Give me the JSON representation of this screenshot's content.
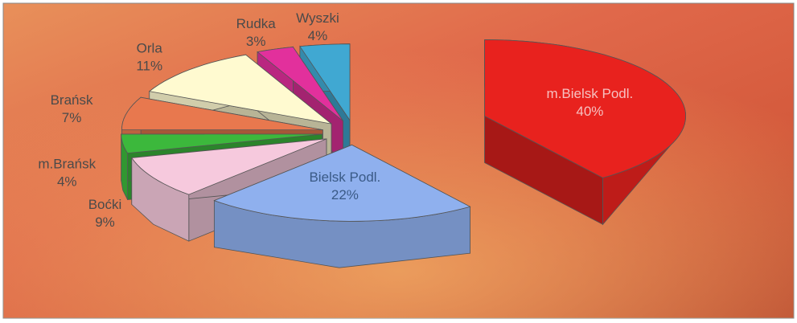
{
  "chart_data": {
    "type": "pie3d",
    "categories": [
      "m.Bielsk Podl.",
      "Bielsk Podl.",
      "Boćki",
      "m.Brańsk",
      "Brańsk",
      "Orla",
      "Rudka",
      "Wyszki"
    ],
    "values": [
      40,
      22,
      9,
      4,
      7,
      11,
      3,
      4
    ],
    "value_labels": [
      "40%",
      "22%",
      "9%",
      "4%",
      "7%",
      "11%",
      "3%",
      "4%"
    ],
    "colors": [
      "#e8221e",
      "#8fb0ee",
      "#f6c9dd",
      "#3cb83c",
      "#e8784e",
      "#fffad0",
      "#e2309c",
      "#40a8d2"
    ]
  }
}
